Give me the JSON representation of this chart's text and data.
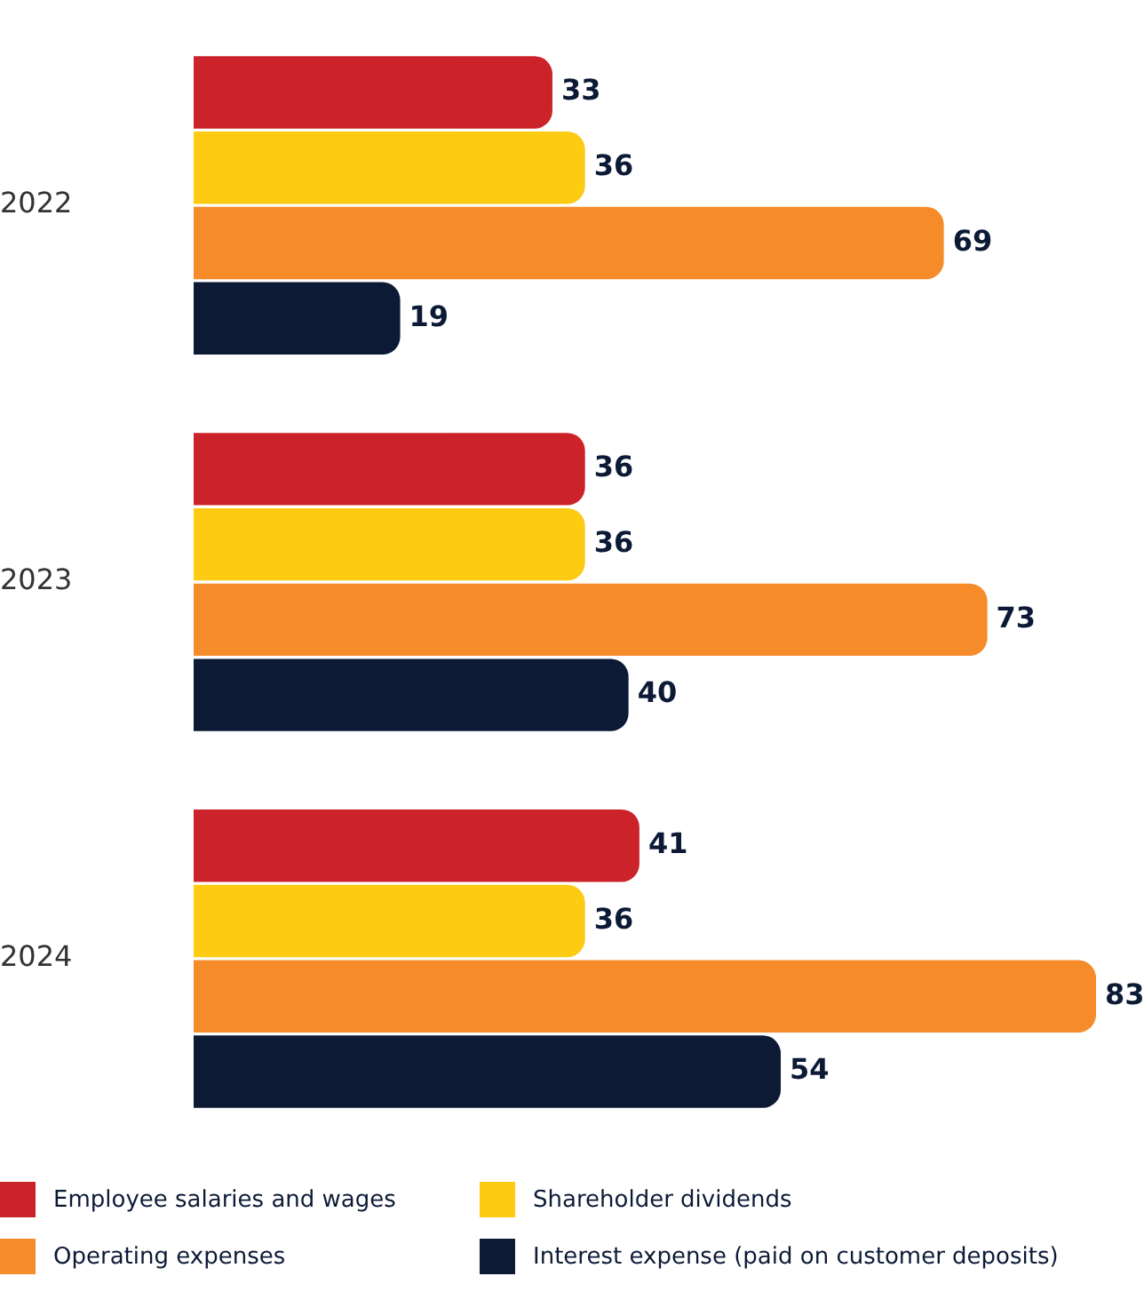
{
  "chart_data": {
    "type": "bar",
    "orientation": "horizontal",
    "categories": [
      "2022",
      "2023",
      "2024"
    ],
    "series": [
      {
        "name": "Employee salaries and wages",
        "color": "#cc2229",
        "values": [
          33,
          36,
          41
        ]
      },
      {
        "name": "Shareholder dividends",
        "color": "#fccb12",
        "values": [
          36,
          36,
          36
        ]
      },
      {
        "name": "Operating expenses",
        "color": "#f68b29",
        "values": [
          69,
          73,
          83
        ]
      },
      {
        "name": "Interest expense (paid on customer deposits)",
        "color": "#0c1a36",
        "values": [
          19,
          40,
          54
        ]
      }
    ],
    "data_labels": true,
    "legend": "bottom"
  }
}
